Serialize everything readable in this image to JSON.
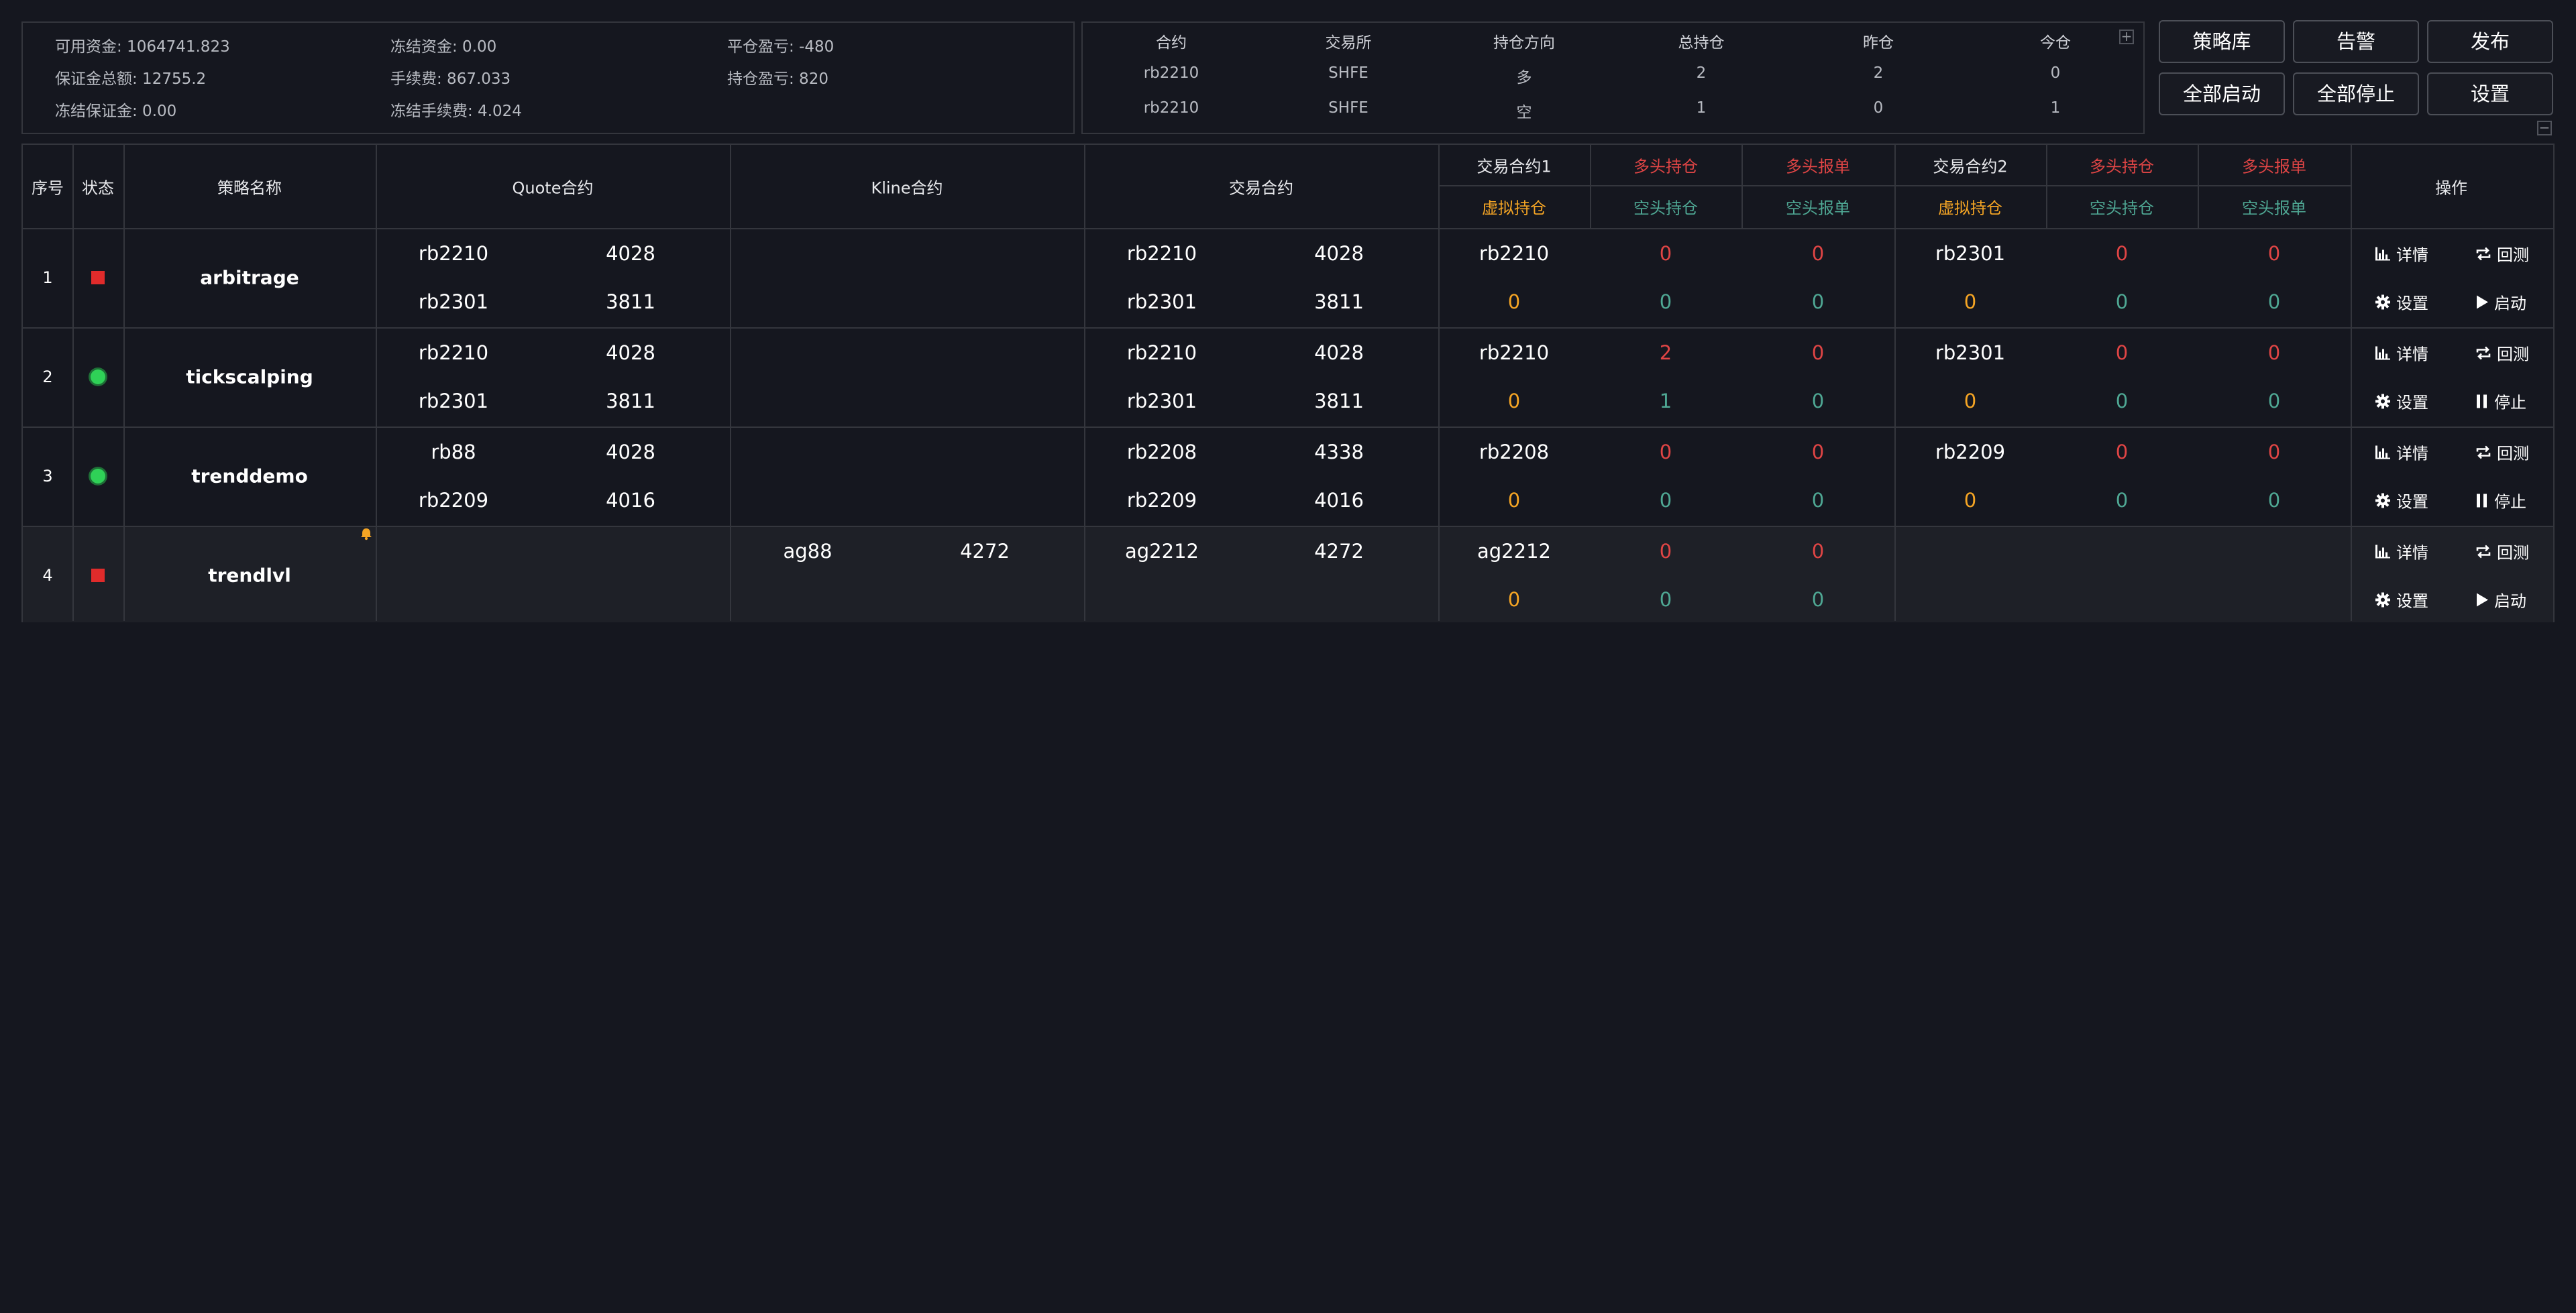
{
  "account": {
    "available": "可用资金: 1064741.823",
    "frozen": "冻结资金: 0.00",
    "close_pnl": "平仓盈亏: -480",
    "margin_total": "保证金总额: 12755.2",
    "fee": "手续费: 867.033",
    "hold_pnl": "持仓盈亏: 820",
    "frozen_margin": "冻结保证金: 0.00",
    "frozen_fee": "冻结手续费: 4.024"
  },
  "positions": {
    "headers": [
      "合约",
      "交易所",
      "持仓方向",
      "总持仓",
      "昨仓",
      "今仓"
    ],
    "rows": [
      [
        "rb2210",
        "SHFE",
        "多",
        "2",
        "2",
        "0"
      ],
      [
        "rb2210",
        "SHFE",
        "空",
        "1",
        "0",
        "1"
      ]
    ],
    "expand_symbol": "+",
    "collapse_symbol": "−"
  },
  "buttons": {
    "strategy_lib": "策略库",
    "alert": "告警",
    "publish": "发布",
    "start_all": "全部启动",
    "stop_all": "全部停止",
    "settings": "设置"
  },
  "table": {
    "headers": {
      "index": "序号",
      "status": "状态",
      "name": "策略名称",
      "quote": "Quote合约",
      "kline": "Kline合约",
      "trade": "交易合约",
      "trade1": "交易合约1",
      "long_pos1": "多头持仓",
      "long_order1": "多头报单",
      "trade2": "交易合约2",
      "long_pos2": "多头持仓",
      "long_order2": "多头报单",
      "virtual1": "虚拟持仓",
      "short_pos1": "空头持仓",
      "short_order1": "空头报单",
      "virtual2": "虚拟持仓",
      "short_pos2": "空头持仓",
      "short_order2": "空头报单",
      "ops": "操作"
    },
    "rows": [
      {
        "index": "1",
        "status": "stopped",
        "name": "arbitrage",
        "quote": [
          [
            "rb2210",
            "4028"
          ],
          [
            "rb2301",
            "3811"
          ]
        ],
        "kline": [],
        "trade": [
          [
            "rb2210",
            "4028"
          ],
          [
            "rb2301",
            "3811"
          ]
        ],
        "t1": {
          "symbol": "rb2210",
          "long_pos": "0",
          "long_order": "0",
          "virtual": "0",
          "short_pos": "0",
          "short_order": "0"
        },
        "t2": {
          "symbol": "rb2301",
          "long_pos": "0",
          "long_order": "0",
          "virtual": "0",
          "short_pos": "0",
          "short_order": "0"
        },
        "ops": {
          "detail": "详情",
          "backtest": "回测",
          "settings": "设置",
          "toggle": "启动"
        }
      },
      {
        "index": "2",
        "status": "running",
        "name": "tickscalping",
        "quote": [
          [
            "rb2210",
            "4028"
          ],
          [
            "rb2301",
            "3811"
          ]
        ],
        "kline": [],
        "trade": [
          [
            "rb2210",
            "4028"
          ],
          [
            "rb2301",
            "3811"
          ]
        ],
        "t1": {
          "symbol": "rb2210",
          "long_pos": "2",
          "long_order": "0",
          "virtual": "0",
          "short_pos": "1",
          "short_order": "0"
        },
        "t2": {
          "symbol": "rb2301",
          "long_pos": "0",
          "long_order": "0",
          "virtual": "0",
          "short_pos": "0",
          "short_order": "0"
        },
        "ops": {
          "detail": "详情",
          "backtest": "回测",
          "settings": "设置",
          "toggle": "停止"
        }
      },
      {
        "index": "3",
        "status": "running",
        "name": "trenddemo",
        "quote": [
          [
            "rb88",
            "4028"
          ],
          [
            "rb2209",
            "4016"
          ]
        ],
        "kline": [],
        "trade": [
          [
            "rb2208",
            "4338"
          ],
          [
            "rb2209",
            "4016"
          ]
        ],
        "t1": {
          "symbol": "rb2208",
          "long_pos": "0",
          "long_order": "0",
          "virtual": "0",
          "short_pos": "0",
          "short_order": "0"
        },
        "t2": {
          "symbol": "rb2209",
          "long_pos": "0",
          "long_order": "0",
          "virtual": "0",
          "short_pos": "0",
          "short_order": "0"
        },
        "ops": {
          "detail": "详情",
          "backtest": "回测",
          "settings": "设置",
          "toggle": "停止"
        }
      },
      {
        "index": "4",
        "status": "stopped",
        "name": "trendlvl",
        "quote": [],
        "kline": [
          [
            "ag88",
            "4272"
          ]
        ],
        "trade": [
          [
            "ag2212",
            "4272"
          ]
        ],
        "t1": {
          "symbol": "ag2212",
          "long_pos": "0",
          "long_order": "0",
          "virtual": "0",
          "short_pos": "0",
          "short_order": "0"
        },
        "t2": null,
        "ops": {
          "detail": "详情",
          "backtest": "回测",
          "settings": "设置",
          "toggle": "启动"
        }
      }
    ]
  },
  "colors": {
    "background": "#15171f",
    "border": "#34363d",
    "red": "#e04545",
    "orange": "#f5a524",
    "teal": "#4fa894",
    "status_running": "#2fd157",
    "status_stopped": "#e02b2b"
  }
}
